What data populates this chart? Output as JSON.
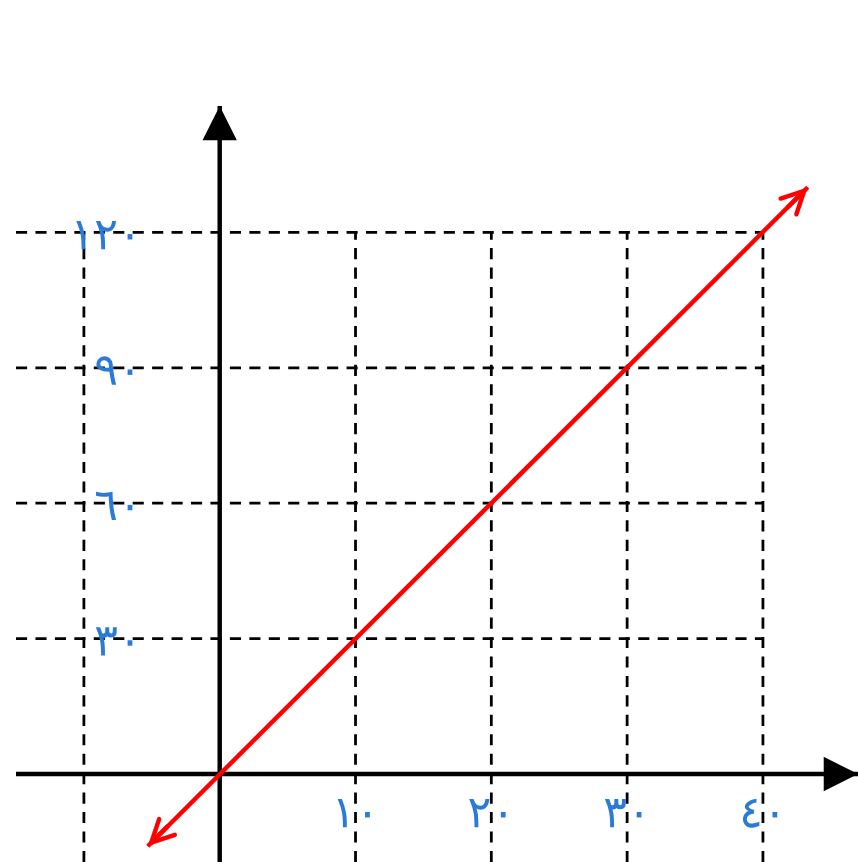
{
  "chart_data": {
    "type": "line",
    "x": [
      -5.3,
      43.3
    ],
    "series": [
      {
        "color": "#ff0000",
        "values": [
          -16,
          130
        ]
      }
    ],
    "xlim": [
      -15,
      47
    ],
    "ylim": [
      -19.5,
      148
    ],
    "xticks": [
      {
        "value": -10,
        "label": null
      },
      {
        "value": 10,
        "label": "١٠"
      },
      {
        "value": 20,
        "label": "٢٠"
      },
      {
        "value": 30,
        "label": "٣٠"
      },
      {
        "value": 40,
        "label": "٤٠"
      }
    ],
    "yticks": [
      {
        "value": 0,
        "label": null
      },
      {
        "value": 30,
        "label": "٣٠"
      },
      {
        "value": 60,
        "label": "٦٠"
      },
      {
        "value": 90,
        "label": "٩٠"
      },
      {
        "value": 120,
        "label": "١٢٠"
      }
    ],
    "grid": true,
    "marker": "none",
    "line_style": "solid"
  }
}
